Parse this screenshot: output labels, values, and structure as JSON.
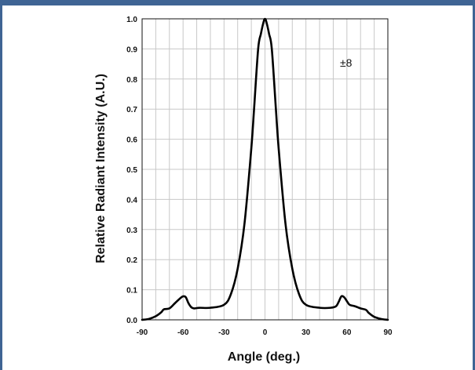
{
  "colors": {
    "frame": "#3f6494",
    "curve": "#000000",
    "grid": "#c8c8c8"
  },
  "chart_data": {
    "type": "line",
    "title": "",
    "xlabel": "Angle (deg.)",
    "ylabel": "Relative Radiant Intensity (A.U.)",
    "xlim": [
      -90,
      90
    ],
    "ylim": [
      0,
      1.0
    ],
    "x_ticks": [
      -90,
      -60,
      -30,
      0,
      30,
      60,
      90
    ],
    "x_tick_labels": [
      "-90",
      "-60",
      "-30",
      "0",
      "30",
      "60",
      "90"
    ],
    "y_ticks": [
      0,
      0.1,
      0.2,
      0.3,
      0.4,
      0.5,
      0.6,
      0.7,
      0.8,
      0.9,
      1.0
    ],
    "y_tick_labels": [
      "0.0",
      "0.1",
      "0.2",
      "0.3",
      "0.4",
      "0.5",
      "0.6",
      "0.7",
      "0.8",
      "0.9",
      "1.0"
    ],
    "grid": true,
    "annotation": "±8",
    "series": [
      {
        "x": [
          -90,
          -85,
          -80,
          -76,
          -74,
          -70,
          -66,
          -62,
          -60,
          -58,
          -56,
          -54,
          -52,
          -48,
          -40,
          -30,
          -25,
          -20,
          -15,
          -10,
          -8,
          -5,
          -3,
          -1,
          0,
          1,
          3,
          5,
          8,
          10,
          15,
          20,
          25,
          30,
          40,
          48,
          52,
          54,
          56,
          58,
          60,
          62,
          66,
          70,
          74,
          76,
          80,
          85,
          90
        ],
        "y": [
          0.0,
          0.003,
          0.012,
          0.025,
          0.035,
          0.038,
          0.055,
          0.072,
          0.078,
          0.075,
          0.055,
          0.042,
          0.038,
          0.04,
          0.04,
          0.05,
          0.085,
          0.17,
          0.32,
          0.57,
          0.7,
          0.9,
          0.95,
          0.99,
          1.0,
          0.99,
          0.95,
          0.9,
          0.7,
          0.57,
          0.32,
          0.17,
          0.085,
          0.05,
          0.04,
          0.04,
          0.045,
          0.06,
          0.078,
          0.075,
          0.062,
          0.05,
          0.045,
          0.038,
          0.033,
          0.023,
          0.01,
          0.003,
          0.0
        ]
      }
    ]
  }
}
